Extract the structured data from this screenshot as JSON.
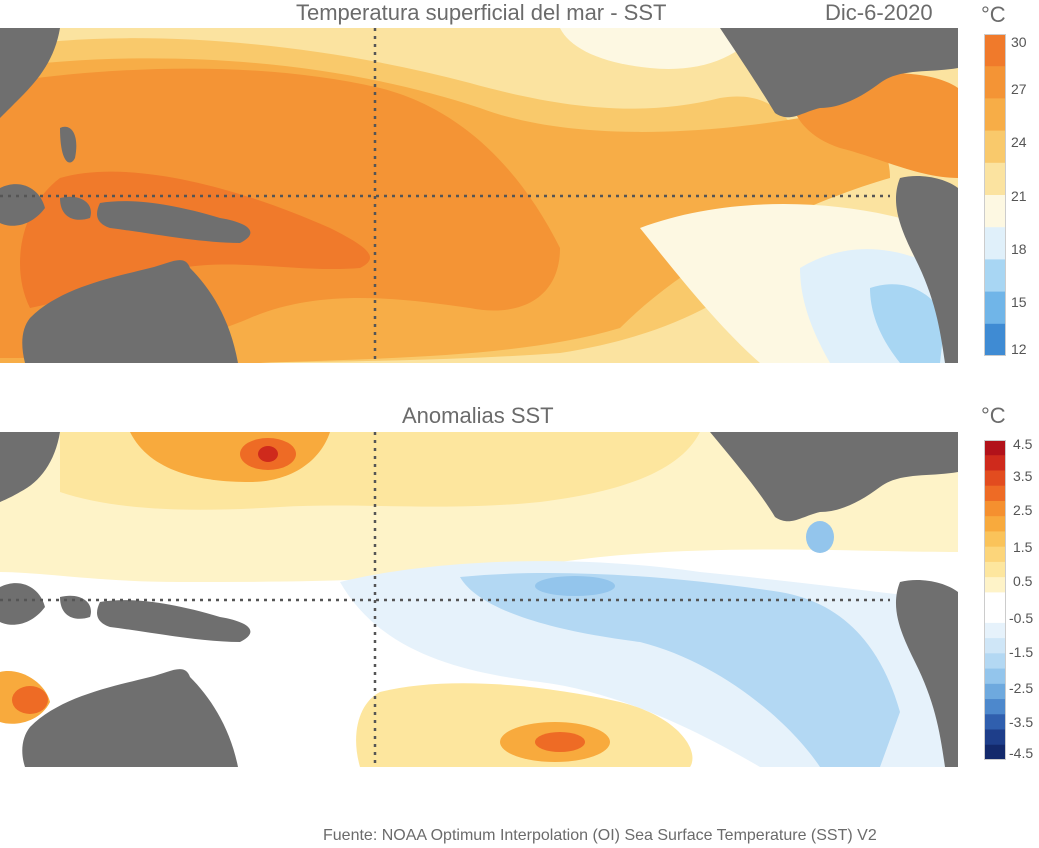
{
  "top_map": {
    "title": "Temperatura superficial del mar - SST",
    "date": "Dic-6-2020",
    "unit": "°C",
    "colorbar_labels": [
      "30",
      "27",
      "24",
      "21",
      "18",
      "15",
      "12"
    ],
    "colorbar_colors": [
      "#f07a2b",
      "#f49435",
      "#f7ad47",
      "#f9c96b",
      "#fbe3a0",
      "#fdf8e2",
      "#e0f0fa",
      "#a8d6f3",
      "#70b5e8",
      "#3f8bd3"
    ]
  },
  "bottom_map": {
    "title": "Anomalias SST",
    "unit": "°C",
    "colorbar_labels": [
      "4.5",
      "3.5",
      "2.5",
      "1.5",
      "0.5",
      "-0.5",
      "-1.5",
      "-2.5",
      "-3.5",
      "-4.5"
    ],
    "colorbar_colors": [
      "#b2121a",
      "#cf2a1c",
      "#e24c1f",
      "#ee6b25",
      "#f5902f",
      "#f8aa3d",
      "#fac35a",
      "#fcd57a",
      "#fde69e",
      "#fef3c8",
      "#ffffff",
      "#ffffff",
      "#e6f2fb",
      "#cfe6f7",
      "#b3d8f3",
      "#93c5ec",
      "#6ea9de",
      "#4d88cc",
      "#305fae",
      "#1e3e8a",
      "#13296b"
    ]
  },
  "colors": {
    "land": "#6f6f6f",
    "grid": "#555555"
  },
  "source": "Fuente: NOAA Optimum Interpolation (OI) Sea Surface Temperature (SST) V2"
}
